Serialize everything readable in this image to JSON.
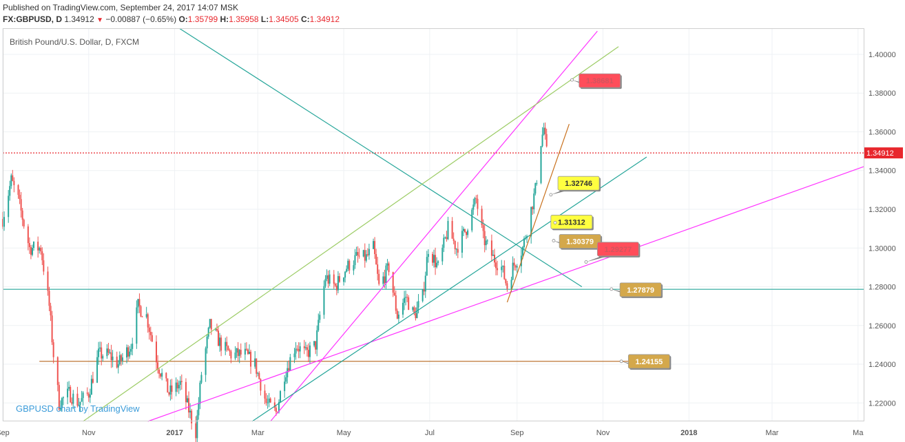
{
  "header": {
    "published": "Published on TradingView.com, September 24, 2017 14:07 MSK",
    "symbol": "FX:GBPUSD, D",
    "last": "1.34912",
    "change": "−0.00887 (−0.65%)",
    "o_label": "O:",
    "o_value": "1.35799",
    "h_label": "H:",
    "h_value": "1.35958",
    "l_label": "L:",
    "l_value": "1.34505",
    "c_label": "C:",
    "c_value": "1.34912"
  },
  "chart_title": "British Pound/U.S. Dollar, D, FXCM",
  "watermark": "GBPUSD chart by TradingView",
  "colors": {
    "up": "#26a69a",
    "down": "#ef5350",
    "teal": "#26a69a",
    "magenta": "#ff33ff",
    "lightgreen": "#9ccc65",
    "orange": "#c8701c",
    "brown": "#b5651d",
    "price_line": "#e8272d",
    "callout_red": "#ff4d5a",
    "callout_yellow": "#ffff40",
    "callout_tan": "#d4a84b"
  },
  "chart_data": {
    "type": "candlestick",
    "x_tick_labels": [
      "Sep",
      "Nov",
      "2017",
      "Mar",
      "May",
      "Jul",
      "Sep",
      "Nov",
      "2018",
      "Mar",
      "Ma"
    ],
    "x_tick_dates": [
      "2016-09-01",
      "2016-11-01",
      "2017-01-01",
      "2017-03-01",
      "2017-05-01",
      "2017-07-01",
      "2017-09-01",
      "2017-11-01",
      "2018-01-01",
      "2018-03-01",
      "2018-05-01"
    ],
    "y_tick_labels": [
      "1.40000",
      "1.38000",
      "1.36000",
      "1.34000",
      "1.32000",
      "1.30000",
      "1.28000",
      "1.26000",
      "1.24000",
      "1.22000"
    ],
    "y_ticks": [
      1.4,
      1.38,
      1.36,
      1.34,
      1.32,
      1.3,
      1.28,
      1.26,
      1.24,
      1.22
    ],
    "ylim": [
      1.2105,
      1.4135
    ],
    "xlim": [
      "2016-09-01",
      "2018-05-05"
    ],
    "last_price": 1.34912,
    "last_price_label": "1.34912",
    "price_path": [
      [
        "2016-09-01",
        1.315
      ],
      [
        "2016-09-07",
        1.335
      ],
      [
        "2016-09-12",
        1.325
      ],
      [
        "2016-09-20",
        1.3
      ],
      [
        "2016-09-28",
        1.3
      ],
      [
        "2016-10-04",
        1.27
      ],
      [
        "2016-10-07",
        1.245
      ],
      [
        "2016-10-11",
        1.22
      ],
      [
        "2016-10-18",
        1.225
      ],
      [
        "2016-10-25",
        1.22
      ],
      [
        "2016-11-01",
        1.225
      ],
      [
        "2016-11-08",
        1.245
      ],
      [
        "2016-11-15",
        1.245
      ],
      [
        "2016-11-22",
        1.24
      ],
      [
        "2016-12-01",
        1.25
      ],
      [
        "2016-12-06",
        1.27
      ],
      [
        "2016-12-12",
        1.265
      ],
      [
        "2016-12-20",
        1.24
      ],
      [
        "2016-12-28",
        1.225
      ],
      [
        "2017-01-05",
        1.23
      ],
      [
        "2017-01-16",
        1.205
      ],
      [
        "2017-01-20",
        1.235
      ],
      [
        "2017-01-26",
        1.26
      ],
      [
        "2017-02-03",
        1.25
      ],
      [
        "2017-02-10",
        1.245
      ],
      [
        "2017-02-20",
        1.245
      ],
      [
        "2017-02-27",
        1.24
      ],
      [
        "2017-03-07",
        1.22
      ],
      [
        "2017-03-14",
        1.215
      ],
      [
        "2017-03-20",
        1.235
      ],
      [
        "2017-03-28",
        1.25
      ],
      [
        "2017-04-04",
        1.245
      ],
      [
        "2017-04-11",
        1.25
      ],
      [
        "2017-04-18",
        1.285
      ],
      [
        "2017-04-25",
        1.28
      ],
      [
        "2017-05-03",
        1.29
      ],
      [
        "2017-05-10",
        1.295
      ],
      [
        "2017-05-17",
        1.295
      ],
      [
        "2017-05-22",
        1.3
      ],
      [
        "2017-05-26",
        1.28
      ],
      [
        "2017-06-02",
        1.29
      ],
      [
        "2017-06-08",
        1.265
      ],
      [
        "2017-06-14",
        1.275
      ],
      [
        "2017-06-20",
        1.265
      ],
      [
        "2017-06-26",
        1.275
      ],
      [
        "2017-06-30",
        1.3
      ],
      [
        "2017-07-07",
        1.29
      ],
      [
        "2017-07-14",
        1.31
      ],
      [
        "2017-07-20",
        1.3
      ],
      [
        "2017-07-27",
        1.31
      ],
      [
        "2017-08-03",
        1.325
      ],
      [
        "2017-08-08",
        1.305
      ],
      [
        "2017-08-15",
        1.295
      ],
      [
        "2017-08-21",
        1.29
      ],
      [
        "2017-08-25",
        1.28
      ],
      [
        "2017-08-29",
        1.29
      ],
      [
        "2017-09-05",
        1.3
      ],
      [
        "2017-09-11",
        1.32
      ],
      [
        "2017-09-14",
        1.33
      ],
      [
        "2017-09-18",
        1.355
      ],
      [
        "2017-09-20",
        1.362
      ],
      [
        "2017-09-22",
        1.349
      ]
    ],
    "horizontal_levels": [
      {
        "price": 1.34912,
        "style": "dotted-red"
      },
      {
        "price": 1.2787,
        "style": "teal"
      },
      {
        "price": 1.2415,
        "style": "brown",
        "start": "2016-09-27",
        "end": "2017-12-01"
      }
    ],
    "trendlines": [
      {
        "color": "teal",
        "from": [
          "2016-12-17",
          1.422
        ],
        "to": [
          "2017-10-17",
          1.28
        ]
      },
      {
        "color": "magenta",
        "from": [
          "2017-03-10",
          1.2105
        ],
        "to": [
          "2017-10-28",
          1.412
        ]
      },
      {
        "color": "lightgreen",
        "from": [
          "2016-10-28",
          1.2105
        ],
        "to": [
          "2017-11-12",
          1.404
        ]
      },
      {
        "color": "magenta",
        "from": [
          "2016-12-13",
          1.2105
        ],
        "to": [
          "2018-05-05",
          1.342
        ]
      },
      {
        "color": "teal",
        "from": [
          "2017-02-25",
          1.2105
        ],
        "to": [
          "2017-12-02",
          1.347
        ]
      },
      {
        "color": "orange",
        "from": [
          "2017-08-25",
          1.272
        ],
        "to": [
          "2017-10-08",
          1.364
        ]
      }
    ],
    "callouts": [
      {
        "label": "1.38681",
        "color": "callout_red",
        "anchor": [
          "2017-10-10",
          1.3868
        ],
        "box": [
          "2017-10-15",
          1.39
        ]
      },
      {
        "label": "1.32746",
        "color": "callout_yellow",
        "anchor": [
          "2017-09-25",
          1.3275
        ],
        "box": [
          "2017-09-30",
          1.337
        ]
      },
      {
        "label": "1.31312",
        "color": "callout_yellow",
        "anchor": [
          "2017-09-28",
          1.3131
        ],
        "box": [
          "2017-09-25",
          1.317
        ]
      },
      {
        "label": "1.30379",
        "color": "callout_tan",
        "anchor": [
          "2017-09-27",
          1.3038
        ],
        "box": [
          "2017-10-01",
          1.307
        ]
      },
      {
        "label": "1.29277",
        "color": "callout_red",
        "anchor": [
          "2017-10-20",
          1.2928
        ],
        "box": [
          "2017-10-28",
          1.303
        ]
      },
      {
        "label": "1.27879",
        "color": "callout_tan",
        "anchor": [
          "2017-11-07",
          1.2788
        ],
        "box": [
          "2017-11-13",
          1.282
        ]
      },
      {
        "label": "1.24155",
        "color": "callout_tan",
        "anchor": [
          "2017-11-14",
          1.2415
        ],
        "box": [
          "2017-11-19",
          1.245
        ]
      }
    ]
  }
}
